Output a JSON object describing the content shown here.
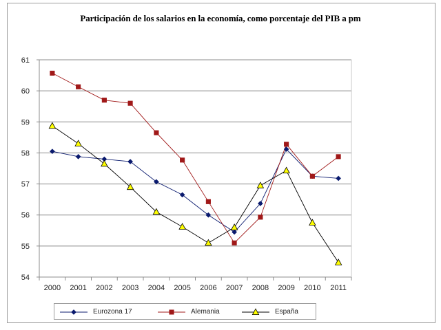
{
  "chart_data": {
    "type": "line",
    "title": "Participación de los salarios en la economía, como porcentaje del PIB a pm",
    "xlabel": "",
    "ylabel": "",
    "categories": [
      "2000",
      "2001",
      "2002",
      "2003",
      "2004",
      "2005",
      "2006",
      "2007",
      "2008",
      "2009",
      "2010",
      "2011"
    ],
    "ylim": [
      54,
      61
    ],
    "yticks": [
      54,
      55,
      56,
      57,
      58,
      59,
      60,
      61
    ],
    "grid": true,
    "legend_position": "bottom",
    "series": [
      {
        "name": "Eurozona 17",
        "color": "#0a1a6e",
        "marker": "diamond",
        "values": [
          58.05,
          57.88,
          57.8,
          57.72,
          57.07,
          56.65,
          56.0,
          55.45,
          56.37,
          58.12,
          57.25,
          57.18
        ]
      },
      {
        "name": "Alemania",
        "color": "#a01818",
        "marker": "square",
        "values": [
          60.57,
          60.13,
          59.7,
          59.6,
          58.65,
          57.77,
          56.43,
          55.1,
          55.93,
          58.28,
          57.25,
          57.88
        ]
      },
      {
        "name": "España",
        "color": "#ffff00",
        "marker": "triangle",
        "values": [
          58.87,
          58.3,
          57.65,
          56.9,
          56.1,
          55.62,
          55.1,
          55.6,
          56.95,
          57.43,
          55.75,
          54.47
        ]
      }
    ]
  }
}
